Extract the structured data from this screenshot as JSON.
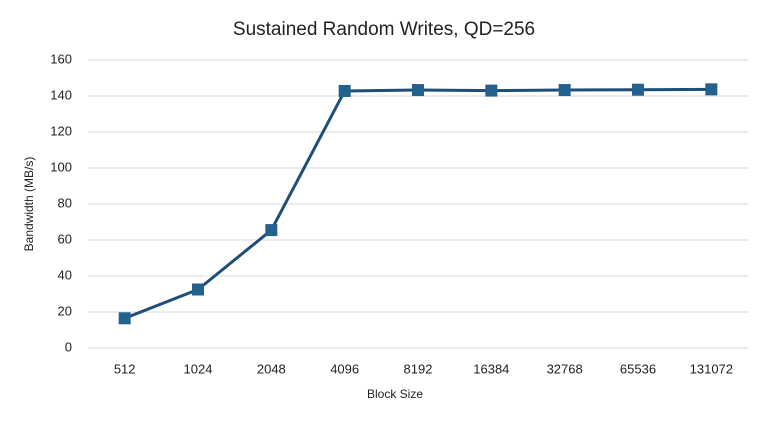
{
  "chart_data": {
    "type": "line",
    "title": "Sustained Random Writes, QD=256",
    "x_label": "Block Size",
    "y_label": "Bandwidth (MB/s)",
    "categories": [
      "512",
      "1024",
      "2048",
      "4096",
      "8192",
      "16384",
      "32768",
      "65536",
      "131072"
    ],
    "series": [
      {
        "name": "Bandwidth",
        "color": "#1f4e79",
        "marker_color": "#23628f",
        "values": [
          16.5,
          32.5,
          65.5,
          142.8,
          143.3,
          143.0,
          143.3,
          143.5,
          143.7
        ]
      }
    ],
    "ylim": [
      0,
      160
    ],
    "yticks": [
      0,
      20,
      40,
      60,
      80,
      100,
      120,
      140,
      160
    ],
    "grid": true
  }
}
